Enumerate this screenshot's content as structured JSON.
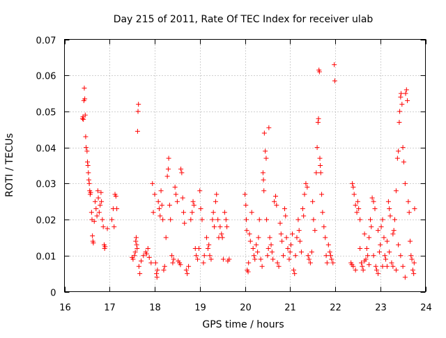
{
  "chart_data": {
    "type": "scatter",
    "title": "Day 215 of 2011, Rate Of TEC Index for receiver ulab",
    "xlabel": "GPS time / hours",
    "ylabel": "ROTI / TECUs",
    "xlim": [
      16,
      24
    ],
    "ylim": [
      0,
      0.07
    ],
    "xticks": [
      16,
      17,
      18,
      19,
      20,
      21,
      22,
      23,
      24
    ],
    "yticks": [
      0,
      0.01,
      0.02,
      0.03,
      0.04,
      0.05,
      0.06,
      0.07
    ],
    "xtick_labels": [
      "16",
      "17",
      "18",
      "19",
      "20",
      "21",
      "22",
      "23",
      "24"
    ],
    "ytick_labels": [
      "0",
      "0.01",
      "0.02",
      "0.03",
      "0.04",
      "0.05",
      "0.06",
      "0.07"
    ],
    "grid": true,
    "marker": "+",
    "marker_color": "#ff0000",
    "series": [
      {
        "name": "ROTI",
        "points": [
          [
            16.4,
            0.048
          ],
          [
            16.41,
            0.0485
          ],
          [
            16.42,
            0.0478
          ],
          [
            16.43,
            0.053
          ],
          [
            16.44,
            0.0565
          ],
          [
            16.45,
            0.0535
          ],
          [
            16.46,
            0.049
          ],
          [
            16.47,
            0.043
          ],
          [
            16.48,
            0.04
          ],
          [
            16.5,
            0.039
          ],
          [
            16.51,
            0.036
          ],
          [
            16.52,
            0.035
          ],
          [
            16.53,
            0.033
          ],
          [
            16.54,
            0.031
          ],
          [
            16.55,
            0.03
          ],
          [
            16.56,
            0.028
          ],
          [
            16.57,
            0.027
          ],
          [
            16.58,
            0.0275
          ],
          [
            16.6,
            0.022
          ],
          [
            16.61,
            0.02
          ],
          [
            16.62,
            0.0155
          ],
          [
            16.63,
            0.014
          ],
          [
            16.64,
            0.0135
          ],
          [
            16.66,
            0.0195
          ],
          [
            16.68,
            0.025
          ],
          [
            16.7,
            0.023
          ],
          [
            16.72,
            0.021
          ],
          [
            16.74,
            0.028
          ],
          [
            16.75,
            0.026
          ],
          [
            16.77,
            0.022
          ],
          [
            16.79,
            0.024
          ],
          [
            16.81,
            0.0275
          ],
          [
            16.82,
            0.025
          ],
          [
            16.84,
            0.02
          ],
          [
            16.86,
            0.018
          ],
          [
            16.88,
            0.013
          ],
          [
            16.89,
            0.012
          ],
          [
            16.9,
            0.0125
          ],
          [
            16.95,
            0.0175
          ],
          [
            17.05,
            0.02
          ],
          [
            17.08,
            0.023
          ],
          [
            17.1,
            0.018
          ],
          [
            17.12,
            0.027
          ],
          [
            17.14,
            0.0265
          ],
          [
            17.16,
            0.023
          ],
          [
            17.5,
            0.0095
          ],
          [
            17.52,
            0.009
          ],
          [
            17.55,
            0.01
          ],
          [
            17.57,
            0.011
          ],
          [
            17.58,
            0.014
          ],
          [
            17.59,
            0.015
          ],
          [
            17.6,
            0.013
          ],
          [
            17.61,
            0.012
          ],
          [
            17.62,
            0.0445
          ],
          [
            17.63,
            0.05
          ],
          [
            17.64,
            0.052
          ],
          [
            17.65,
            0.007
          ],
          [
            17.67,
            0.005
          ],
          [
            17.7,
            0.0085
          ],
          [
            17.75,
            0.01
          ],
          [
            17.8,
            0.011
          ],
          [
            17.82,
            0.0105
          ],
          [
            17.85,
            0.012
          ],
          [
            17.88,
            0.0095
          ],
          [
            17.92,
            0.008
          ],
          [
            17.95,
            0.03
          ],
          [
            17.97,
            0.022
          ],
          [
            18.0,
            0.027
          ],
          [
            18.02,
            0.008
          ],
          [
            18.04,
            0.005
          ],
          [
            18.05,
            0.004
          ],
          [
            18.06,
            0.006
          ],
          [
            18.08,
            0.025
          ],
          [
            18.1,
            0.023
          ],
          [
            18.12,
            0.021
          ],
          [
            18.14,
            0.028
          ],
          [
            18.16,
            0.024
          ],
          [
            18.18,
            0.02
          ],
          [
            18.2,
            0.006
          ],
          [
            18.22,
            0.007
          ],
          [
            18.25,
            0.015
          ],
          [
            18.28,
            0.032
          ],
          [
            18.3,
            0.034
          ],
          [
            18.31,
            0.037
          ],
          [
            18.33,
            0.024
          ],
          [
            18.35,
            0.02
          ],
          [
            18.38,
            0.01
          ],
          [
            18.4,
            0.008
          ],
          [
            18.42,
            0.009
          ],
          [
            18.45,
            0.029
          ],
          [
            18.47,
            0.027
          ],
          [
            18.5,
            0.025
          ],
          [
            18.52,
            0.0085
          ],
          [
            18.55,
            0.008
          ],
          [
            18.57,
            0.0075
          ],
          [
            18.58,
            0.034
          ],
          [
            18.6,
            0.033
          ],
          [
            18.62,
            0.026
          ],
          [
            18.64,
            0.022
          ],
          [
            18.66,
            0.019
          ],
          [
            18.7,
            0.006
          ],
          [
            18.72,
            0.005
          ],
          [
            18.75,
            0.007
          ],
          [
            18.8,
            0.02
          ],
          [
            18.83,
            0.022
          ],
          [
            18.85,
            0.025
          ],
          [
            18.87,
            0.024
          ],
          [
            18.9,
            0.012
          ],
          [
            18.92,
            0.01
          ],
          [
            18.95,
            0.009
          ],
          [
            18.98,
            0.012
          ],
          [
            19.0,
            0.028
          ],
          [
            19.02,
            0.023
          ],
          [
            19.05,
            0.02
          ],
          [
            19.08,
            0.008
          ],
          [
            19.1,
            0.01
          ],
          [
            19.15,
            0.015
          ],
          [
            19.18,
            0.012
          ],
          [
            19.2,
            0.013
          ],
          [
            19.22,
            0.01
          ],
          [
            19.25,
            0.009
          ],
          [
            19.28,
            0.02
          ],
          [
            19.3,
            0.022
          ],
          [
            19.32,
            0.018
          ],
          [
            19.35,
            0.025
          ],
          [
            19.37,
            0.027
          ],
          [
            19.4,
            0.02
          ],
          [
            19.42,
            0.015
          ],
          [
            19.45,
            0.018
          ],
          [
            19.48,
            0.016
          ],
          [
            19.5,
            0.015
          ],
          [
            19.52,
            0.009
          ],
          [
            19.55,
            0.022
          ],
          [
            19.58,
            0.02
          ],
          [
            19.6,
            0.018
          ],
          [
            19.62,
            0.0085
          ],
          [
            19.65,
            0.009
          ],
          [
            20.0,
            0.027
          ],
          [
            20.02,
            0.024
          ],
          [
            20.03,
            0.02
          ],
          [
            20.04,
            0.017
          ],
          [
            20.05,
            0.006
          ],
          [
            20.07,
            0.0055
          ],
          [
            20.08,
            0.008
          ],
          [
            20.1,
            0.016
          ],
          [
            20.12,
            0.014
          ],
          [
            20.15,
            0.022
          ],
          [
            20.18,
            0.012
          ],
          [
            20.2,
            0.01
          ],
          [
            20.22,
            0.009
          ],
          [
            20.25,
            0.013
          ],
          [
            20.28,
            0.011
          ],
          [
            20.3,
            0.015
          ],
          [
            20.32,
            0.02
          ],
          [
            20.35,
            0.009
          ],
          [
            20.38,
            0.007
          ],
          [
            20.4,
            0.033
          ],
          [
            20.41,
            0.031
          ],
          [
            20.42,
            0.028
          ],
          [
            20.43,
            0.044
          ],
          [
            20.45,
            0.039
          ],
          [
            20.47,
            0.037
          ],
          [
            20.48,
            0.02
          ],
          [
            20.5,
            0.01
          ],
          [
            20.52,
            0.012
          ],
          [
            20.53,
            0.0455
          ],
          [
            20.55,
            0.015
          ],
          [
            20.58,
            0.013
          ],
          [
            20.6,
            0.011
          ],
          [
            20.62,
            0.009
          ],
          [
            20.65,
            0.025
          ],
          [
            20.68,
            0.0265
          ],
          [
            20.7,
            0.024
          ],
          [
            20.72,
            0.008
          ],
          [
            20.75,
            0.007
          ],
          [
            20.78,
            0.019
          ],
          [
            20.8,
            0.016
          ],
          [
            20.82,
            0.014
          ],
          [
            20.85,
            0.01
          ],
          [
            20.88,
            0.023
          ],
          [
            20.9,
            0.021
          ],
          [
            20.92,
            0.015
          ],
          [
            20.95,
            0.012
          ],
          [
            20.98,
            0.009
          ],
          [
            21.0,
            0.011
          ],
          [
            21.02,
            0.013
          ],
          [
            21.05,
            0.016
          ],
          [
            21.08,
            0.006
          ],
          [
            21.1,
            0.005
          ],
          [
            21.12,
            0.01
          ],
          [
            21.15,
            0.015
          ],
          [
            21.18,
            0.02
          ],
          [
            21.2,
            0.017
          ],
          [
            21.22,
            0.014
          ],
          [
            21.25,
            0.011
          ],
          [
            21.28,
            0.023
          ],
          [
            21.3,
            0.021
          ],
          [
            21.32,
            0.027
          ],
          [
            21.35,
            0.03
          ],
          [
            21.38,
            0.029
          ],
          [
            21.4,
            0.01
          ],
          [
            21.42,
            0.009
          ],
          [
            21.45,
            0.008
          ],
          [
            21.48,
            0.011
          ],
          [
            21.5,
            0.025
          ],
          [
            21.52,
            0.02
          ],
          [
            21.55,
            0.017
          ],
          [
            21.58,
            0.033
          ],
          [
            21.6,
            0.04
          ],
          [
            21.62,
            0.047
          ],
          [
            21.63,
            0.048
          ],
          [
            21.64,
            0.0615
          ],
          [
            21.65,
            0.061
          ],
          [
            21.66,
            0.037
          ],
          [
            21.67,
            0.035
          ],
          [
            21.68,
            0.033
          ],
          [
            21.7,
            0.027
          ],
          [
            21.72,
            0.022
          ],
          [
            21.75,
            0.018
          ],
          [
            21.78,
            0.015
          ],
          [
            21.8,
            0.01
          ],
          [
            21.82,
            0.008
          ],
          [
            21.85,
            0.013
          ],
          [
            21.88,
            0.011
          ],
          [
            21.9,
            0.01
          ],
          [
            21.92,
            0.009
          ],
          [
            21.95,
            0.008
          ],
          [
            21.98,
            0.063
          ],
          [
            21.99,
            0.0585
          ],
          [
            22.35,
            0.008
          ],
          [
            22.37,
            0.0075
          ],
          [
            22.38,
            0.03
          ],
          [
            22.4,
            0.029
          ],
          [
            22.42,
            0.027
          ],
          [
            22.45,
            0.024
          ],
          [
            22.48,
            0.022
          ],
          [
            22.5,
            0.025
          ],
          [
            22.52,
            0.023
          ],
          [
            22.55,
            0.02
          ],
          [
            22.58,
            0.008
          ],
          [
            22.6,
            0.007
          ],
          [
            22.62,
            0.006
          ],
          [
            22.65,
            0.0085
          ],
          [
            22.68,
            0.009
          ],
          [
            22.7,
            0.012
          ],
          [
            22.72,
            0.01
          ],
          [
            22.75,
            0.015
          ],
          [
            22.78,
            0.02
          ],
          [
            22.8,
            0.018
          ],
          [
            22.82,
            0.026
          ],
          [
            22.85,
            0.025
          ],
          [
            22.88,
            0.023
          ],
          [
            22.9,
            0.007
          ],
          [
            22.92,
            0.006
          ],
          [
            22.95,
            0.005
          ],
          [
            22.98,
            0.011
          ],
          [
            23.0,
            0.013
          ],
          [
            23.02,
            0.018
          ],
          [
            23.05,
            0.02
          ],
          [
            23.08,
            0.015
          ],
          [
            23.1,
            0.01
          ],
          [
            23.12,
            0.009
          ],
          [
            23.15,
            0.007
          ],
          [
            23.18,
            0.025
          ],
          [
            23.2,
            0.023
          ],
          [
            23.22,
            0.021
          ],
          [
            23.25,
            0.008
          ],
          [
            23.28,
            0.007
          ],
          [
            23.3,
            0.017
          ],
          [
            23.32,
            0.02
          ],
          [
            23.35,
            0.028
          ],
          [
            23.38,
            0.037
          ],
          [
            23.4,
            0.039
          ],
          [
            23.42,
            0.047
          ],
          [
            23.43,
            0.05
          ],
          [
            23.45,
            0.054
          ],
          [
            23.46,
            0.055
          ],
          [
            23.48,
            0.052
          ],
          [
            23.5,
            0.04
          ],
          [
            23.52,
            0.036
          ],
          [
            23.55,
            0.03
          ],
          [
            23.56,
            0.055
          ],
          [
            23.58,
            0.056
          ],
          [
            23.6,
            0.053
          ],
          [
            23.62,
            0.025
          ],
          [
            23.64,
            0.022
          ],
          [
            23.66,
            0.014
          ],
          [
            23.68,
            0.01
          ],
          [
            23.7,
            0.009
          ],
          [
            23.72,
            0.006
          ],
          [
            23.74,
            0.005
          ],
          [
            23.75,
            0.008
          ],
          [
            23.76,
            0.023
          ],
          [
            23.55,
            0.004
          ],
          [
            23.5,
            0.007
          ],
          [
            23.45,
            0.01
          ],
          [
            23.4,
            0.013
          ],
          [
            23.35,
            0.006
          ],
          [
            23.28,
            0.016
          ],
          [
            23.2,
            0.011
          ],
          [
            23.15,
            0.014
          ],
          [
            23.05,
            0.007
          ],
          [
            22.95,
            0.017
          ],
          [
            22.85,
            0.01
          ],
          [
            22.75,
            0.0075
          ],
          [
            22.65,
            0.016
          ],
          [
            22.55,
            0.012
          ],
          [
            22.45,
            0.006
          ],
          [
            22.4,
            0.007
          ]
        ]
      }
    ]
  }
}
